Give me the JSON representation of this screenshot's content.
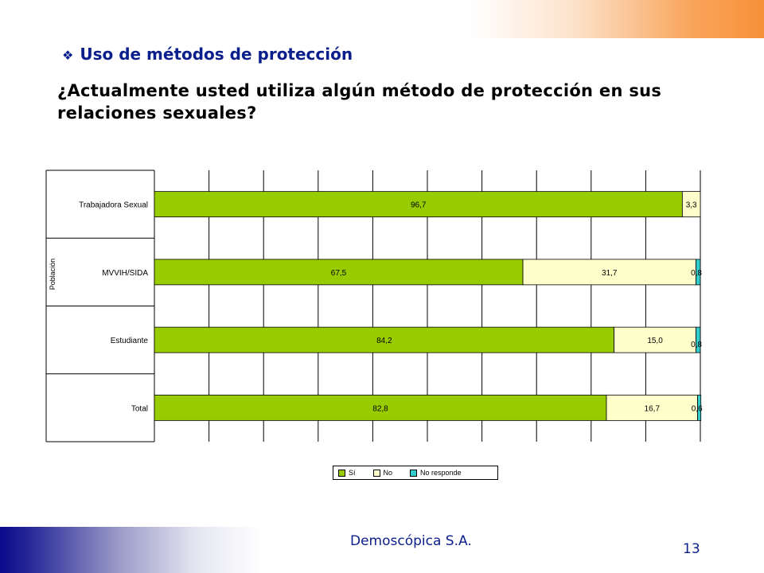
{
  "slide": {
    "section_title": "Uso de métodos de protección",
    "bullet_icon": "diamond-bullet-icon",
    "question": "¿Actualmente usted utiliza algún método de protección en sus relaciones sexuales?",
    "company": "Demoscópica S.A.",
    "page_number": "13"
  },
  "colors": {
    "si": "#99cc00",
    "no": "#ffffcc",
    "no_responde": "#33cccc",
    "title_blue": "#0a1e8c"
  },
  "chart_data": {
    "type": "bar",
    "orientation": "horizontal",
    "stacked": true,
    "ylabel": "Población",
    "categories": [
      "Trabajadora Sexual",
      "MVVIH/SIDA",
      "Estudiante",
      "Total"
    ],
    "series": [
      {
        "name": "Sí",
        "values": [
          96.7,
          67.5,
          84.2,
          82.8
        ],
        "labels": [
          "96,7",
          "67,5",
          "84,2",
          "82,8"
        ]
      },
      {
        "name": "No",
        "values": [
          3.3,
          31.7,
          15.0,
          16.7
        ],
        "labels": [
          "3,3",
          "31,7",
          "15,0",
          "16,7"
        ]
      },
      {
        "name": "No responde",
        "values": [
          0,
          0.8,
          0.8,
          0.6
        ],
        "labels": [
          "",
          "0,8",
          "0,8",
          "0,6"
        ]
      }
    ],
    "xlim": [
      0,
      100
    ],
    "grid": true,
    "legend_position": "bottom"
  }
}
